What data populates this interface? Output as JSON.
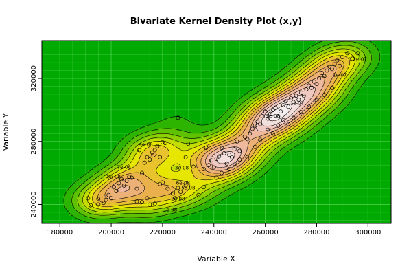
{
  "chart_data": {
    "type": "contour",
    "title": "Bivariate Kernel Density Plot (x,y)",
    "xlabel": "Variable X",
    "ylabel": "Variable Y",
    "xlim": [
      173000,
      309000
    ],
    "ylim": [
      228000,
      344000
    ],
    "x_ticks": [
      {
        "value": 180000,
        "label": "180000"
      },
      {
        "value": 200000,
        "label": "200000"
      },
      {
        "value": 220000,
        "label": "220000"
      },
      {
        "value": 240000,
        "label": "240000"
      },
      {
        "value": 260000,
        "label": "260000"
      },
      {
        "value": 280000,
        "label": "280000"
      },
      {
        "value": 300000,
        "label": "300000"
      }
    ],
    "y_ticks": [
      {
        "value": 240000,
        "label": "240000"
      },
      {
        "value": 280000,
        "label": "280000"
      },
      {
        "value": 320000,
        "label": "320000"
      }
    ],
    "grid": true,
    "colors": {
      "background": "#00aa00",
      "grid": "#4fd24f",
      "low": "#00a600",
      "mid": "#e6e600",
      "high": "#f2f2f2"
    },
    "contour_labels": [
      {
        "x": 223000,
        "y": 236500,
        "label": "1e-08"
      },
      {
        "x": 226000,
        "y": 243500,
        "label": "2e-08"
      },
      {
        "x": 227500,
        "y": 263000,
        "label": "3e-08"
      },
      {
        "x": 213500,
        "y": 278000,
        "label": "4e-08"
      },
      {
        "x": 230000,
        "y": 250500,
        "label": "5e-08"
      },
      {
        "x": 228000,
        "y": 253500,
        "label": "6e-08"
      },
      {
        "x": 205000,
        "y": 263500,
        "label": "7e-08"
      },
      {
        "x": 201000,
        "y": 257500,
        "label": "8e-08"
      },
      {
        "x": 263000,
        "y": 296000,
        "label": "9e-08"
      },
      {
        "x": 289000,
        "y": 322000,
        "label": "1e-07"
      },
      {
        "x": 271500,
        "y": 304000,
        "label": "1.1e-07"
      },
      {
        "x": 296000,
        "y": 332000,
        "label": "1.2e-07"
      }
    ],
    "points": [
      {
        "x": 191000,
        "y": 244000
      },
      {
        "x": 192000,
        "y": 239500
      },
      {
        "x": 195000,
        "y": 243500
      },
      {
        "x": 195000,
        "y": 240000
      },
      {
        "x": 197000,
        "y": 241000
      },
      {
        "x": 198000,
        "y": 243000
      },
      {
        "x": 199000,
        "y": 246000
      },
      {
        "x": 200000,
        "y": 244000
      },
      {
        "x": 201000,
        "y": 251000
      },
      {
        "x": 202000,
        "y": 248500
      },
      {
        "x": 203000,
        "y": 253500
      },
      {
        "x": 204000,
        "y": 256000
      },
      {
        "x": 205000,
        "y": 252000
      },
      {
        "x": 206000,
        "y": 255000
      },
      {
        "x": 207000,
        "y": 257500
      },
      {
        "x": 208000,
        "y": 257000
      },
      {
        "x": 210000,
        "y": 250000
      },
      {
        "x": 211000,
        "y": 274500
      },
      {
        "x": 212000,
        "y": 260000
      },
      {
        "x": 213000,
        "y": 266500
      },
      {
        "x": 214000,
        "y": 270000
      },
      {
        "x": 215000,
        "y": 268500
      },
      {
        "x": 216000,
        "y": 273000
      },
      {
        "x": 217000,
        "y": 274500
      },
      {
        "x": 218000,
        "y": 277000
      },
      {
        "x": 219000,
        "y": 270000
      },
      {
        "x": 220000,
        "y": 279500
      },
      {
        "x": 221000,
        "y": 279000
      },
      {
        "x": 226000,
        "y": 295000
      },
      {
        "x": 229000,
        "y": 270000
      },
      {
        "x": 230000,
        "y": 278500
      },
      {
        "x": 210000,
        "y": 242000
      },
      {
        "x": 212000,
        "y": 241500
      },
      {
        "x": 214000,
        "y": 244000
      },
      {
        "x": 215000,
        "y": 240000
      },
      {
        "x": 217000,
        "y": 240500
      },
      {
        "x": 219000,
        "y": 253000
      },
      {
        "x": 220000,
        "y": 254000
      },
      {
        "x": 222000,
        "y": 250000
      },
      {
        "x": 224000,
        "y": 247000
      },
      {
        "x": 225000,
        "y": 244000
      },
      {
        "x": 226000,
        "y": 250500
      },
      {
        "x": 227000,
        "y": 248000
      },
      {
        "x": 229000,
        "y": 252000
      },
      {
        "x": 232000,
        "y": 264000
      },
      {
        "x": 234000,
        "y": 246000
      },
      {
        "x": 236000,
        "y": 251000
      },
      {
        "x": 236000,
        "y": 262500
      },
      {
        "x": 237000,
        "y": 276000
      },
      {
        "x": 238000,
        "y": 265000
      },
      {
        "x": 239000,
        "y": 268000
      },
      {
        "x": 240000,
        "y": 263500
      },
      {
        "x": 241000,
        "y": 269000
      },
      {
        "x": 242000,
        "y": 270500
      },
      {
        "x": 243000,
        "y": 276000
      },
      {
        "x": 244000,
        "y": 272500
      },
      {
        "x": 245000,
        "y": 266000
      },
      {
        "x": 246000,
        "y": 271500
      },
      {
        "x": 247000,
        "y": 270000
      },
      {
        "x": 248000,
        "y": 275000
      },
      {
        "x": 249000,
        "y": 280000
      },
      {
        "x": 250000,
        "y": 274000
      },
      {
        "x": 252000,
        "y": 283000
      },
      {
        "x": 253000,
        "y": 281500
      },
      {
        "x": 254000,
        "y": 285000
      },
      {
        "x": 255000,
        "y": 288000
      },
      {
        "x": 256000,
        "y": 290000
      },
      {
        "x": 257000,
        "y": 292500
      },
      {
        "x": 258000,
        "y": 291000
      },
      {
        "x": 259000,
        "y": 296000
      },
      {
        "x": 260000,
        "y": 299000
      },
      {
        "x": 261000,
        "y": 294500
      },
      {
        "x": 262000,
        "y": 297500
      },
      {
        "x": 263000,
        "y": 300000
      },
      {
        "x": 264000,
        "y": 301500
      },
      {
        "x": 265000,
        "y": 296000
      },
      {
        "x": 266000,
        "y": 299000
      },
      {
        "x": 267000,
        "y": 303000
      },
      {
        "x": 268000,
        "y": 305500
      },
      {
        "x": 269000,
        "y": 302000
      },
      {
        "x": 270000,
        "y": 307500
      },
      {
        "x": 271000,
        "y": 305000
      },
      {
        "x": 272000,
        "y": 309000
      },
      {
        "x": 273000,
        "y": 306500
      },
      {
        "x": 274000,
        "y": 311000
      },
      {
        "x": 275000,
        "y": 309000
      },
      {
        "x": 276000,
        "y": 313000
      },
      {
        "x": 277000,
        "y": 315500
      },
      {
        "x": 278000,
        "y": 314000
      },
      {
        "x": 279000,
        "y": 318000
      },
      {
        "x": 280000,
        "y": 316500
      },
      {
        "x": 281000,
        "y": 320000
      },
      {
        "x": 282000,
        "y": 323500
      },
      {
        "x": 283000,
        "y": 321500
      },
      {
        "x": 284000,
        "y": 325000
      },
      {
        "x": 285000,
        "y": 327500
      },
      {
        "x": 286000,
        "y": 326000
      },
      {
        "x": 287000,
        "y": 329000
      },
      {
        "x": 288000,
        "y": 331500
      },
      {
        "x": 289000,
        "y": 328000
      },
      {
        "x": 290000,
        "y": 333500
      },
      {
        "x": 292000,
        "y": 336000
      },
      {
        "x": 294000,
        "y": 332500
      },
      {
        "x": 296000,
        "y": 336000
      },
      {
        "x": 253000,
        "y": 270000
      },
      {
        "x": 256000,
        "y": 276500
      },
      {
        "x": 258000,
        "y": 281000
      },
      {
        "x": 261000,
        "y": 287500
      },
      {
        "x": 263000,
        "y": 285000
      },
      {
        "x": 265000,
        "y": 290000
      },
      {
        "x": 267000,
        "y": 293500
      },
      {
        "x": 269000,
        "y": 291000
      },
      {
        "x": 271000,
        "y": 295000
      },
      {
        "x": 274000,
        "y": 298500
      },
      {
        "x": 277000,
        "y": 302000
      },
      {
        "x": 280000,
        "y": 306000
      },
      {
        "x": 283000,
        "y": 309500
      },
      {
        "x": 286000,
        "y": 314000
      },
      {
        "x": 241000,
        "y": 257000
      },
      {
        "x": 243000,
        "y": 260000
      },
      {
        "x": 246000,
        "y": 262500
      },
      {
        "x": 248000,
        "y": 266000
      },
      {
        "x": 250000,
        "y": 268500
      }
    ]
  }
}
